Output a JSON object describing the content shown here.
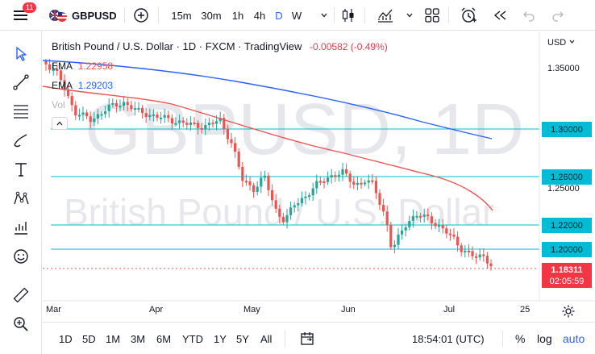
{
  "topbar": {
    "menu_badge": "11",
    "symbol": "GBPUSD",
    "intervals": [
      "15m",
      "30m",
      "1h",
      "4h",
      "D",
      "W"
    ],
    "selected_interval": "D"
  },
  "legend": {
    "title": "British Pound / U.S. Dollar · 1D · FXCM · TradingView",
    "change": "-0.00582 (-0.49%)",
    "ema1_label": "EMA",
    "ema1_value": "1.22958",
    "ema2_label": "EMA",
    "ema2_value": "1.29203",
    "vol_label": "Vol"
  },
  "watermark": {
    "line1": "GBPUSD, 1D",
    "line2": "British Pound / U.S. Dollar"
  },
  "price_axis": {
    "currency": "USD",
    "ticks": [
      "1.35000",
      "1.25000"
    ],
    "boxed": [
      "1.30000",
      "1.26000",
      "1.22000",
      "1.20000"
    ],
    "last_price": "1.18311",
    "countdown": "02:05:59"
  },
  "time_axis": [
    "Mar",
    "Apr",
    "May",
    "Jun",
    "Jul",
    "25"
  ],
  "bottombar": {
    "ranges": [
      "1D",
      "5D",
      "1M",
      "3M",
      "6M",
      "YTD",
      "1Y",
      "5Y",
      "All"
    ],
    "clock": "18:54:01 (UTC)",
    "percent": "%",
    "log": "log",
    "auto": "auto"
  },
  "colors": {
    "up": "#26a69a",
    "down": "#ef5350",
    "ema_red": "#ef5350",
    "ema_blue": "#2962ff",
    "hline": "#00bcd4",
    "accent": "#2962ff"
  },
  "icons": {
    "left_toolbar": [
      "cursor-icon",
      "trend-line-icon",
      "fib-icon",
      "brush-icon",
      "text-icon",
      "pattern-icon",
      "measure-icon",
      "emoji-icon",
      "ruler-icon",
      "zoom-icon"
    ]
  }
}
